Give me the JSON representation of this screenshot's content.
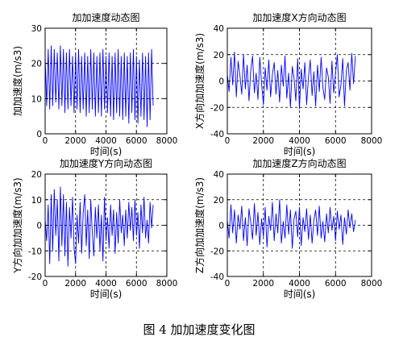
{
  "chart_data": [
    {
      "type": "line",
      "title": "加加速度动态图",
      "xlabel": "时间(s)",
      "ylabel": "加加速度(m/s3)",
      "xlim": [
        0,
        8000
      ],
      "ylim": [
        0,
        30
      ],
      "xticks": [
        0,
        2000,
        4000,
        6000,
        8000
      ],
      "yticks": [
        0,
        10,
        20,
        30
      ],
      "grid": true,
      "series": [
        {
          "x": [
            0,
            100,
            200,
            300,
            400,
            500,
            600,
            700,
            800,
            900,
            1000,
            1100,
            1200,
            1300,
            1400,
            1500,
            1600,
            1700,
            1800,
            1900,
            2000,
            2100,
            2200,
            2300,
            2400,
            2500,
            2600,
            2700,
            2800,
            2900,
            3000,
            3100,
            3200,
            3300,
            3400,
            3500,
            3600,
            3700,
            3800,
            3900,
            4000,
            4100,
            4200,
            4300,
            4400,
            4500,
            4600,
            4700,
            4800,
            4900,
            5000,
            5100,
            5200,
            5300,
            5400,
            5500,
            5600,
            5700,
            5800,
            5900,
            6000,
            6100,
            6200,
            6300,
            6400,
            6500,
            6600,
            6700,
            6800,
            6900,
            7000,
            7100
          ],
          "values": [
            22,
            8,
            24,
            7,
            25,
            8,
            24,
            9,
            23,
            7,
            25,
            8,
            24,
            6,
            23,
            7,
            24,
            8,
            22,
            6,
            23,
            7,
            24,
            6,
            22,
            7,
            23,
            5,
            22,
            6,
            24,
            7,
            23,
            5,
            22,
            6,
            23,
            5,
            24,
            7,
            22,
            6,
            23,
            5,
            22,
            4,
            23,
            6,
            24,
            5,
            22,
            4,
            23,
            5,
            22,
            3,
            23,
            6,
            24,
            4,
            22,
            3,
            21,
            5,
            23,
            4,
            22,
            2,
            23,
            4,
            24,
            8
          ],
          "color": "#0000ff"
        }
      ]
    },
    {
      "type": "line",
      "title": "加加速度X方向动态图",
      "xlabel": "时间(s)",
      "ylabel": "X方向加加速度(m/s3)",
      "xlim": [
        0,
        8000
      ],
      "ylim": [
        -40,
        40
      ],
      "xticks": [
        0,
        2000,
        4000,
        6000,
        8000
      ],
      "yticks": [
        -40,
        -20,
        0,
        20,
        40
      ],
      "grid": true,
      "series": [
        {
          "x": [
            0,
            100,
            200,
            300,
            400,
            500,
            600,
            700,
            800,
            900,
            1000,
            1100,
            1200,
            1300,
            1400,
            1500,
            1600,
            1700,
            1800,
            1900,
            2000,
            2100,
            2200,
            2300,
            2400,
            2500,
            2600,
            2700,
            2800,
            2900,
            3000,
            3100,
            3200,
            3300,
            3400,
            3500,
            3600,
            3700,
            3800,
            3900,
            4000,
            4100,
            4200,
            4300,
            4400,
            4500,
            4600,
            4700,
            4800,
            4900,
            5000,
            5100,
            5200,
            5300,
            5400,
            5500,
            5600,
            5700,
            5800,
            5900,
            6000,
            6100,
            6200,
            6300,
            6400,
            6500,
            6600,
            6700,
            6800,
            6900,
            7000,
            7100
          ],
          "values": [
            5,
            -8,
            18,
            -3,
            22,
            -12,
            15,
            4,
            -10,
            20,
            -6,
            12,
            -15,
            8,
            19,
            -9,
            6,
            -14,
            18,
            -2,
            -18,
            10,
            -7,
            16,
            -12,
            5,
            14,
            -10,
            8,
            -16,
            12,
            -4,
            19,
            -13,
            6,
            -20,
            11,
            2,
            -15,
            17,
            -21,
            9,
            -6,
            14,
            -18,
            3,
            16,
            -11,
            7,
            -19,
            12,
            -8,
            18,
            -5,
            -14,
            10,
            3,
            -17,
            15,
            -9,
            6,
            20,
            -12,
            -3,
            17,
            -19,
            8,
            14,
            -7,
            21,
            -2,
            19
          ],
          "color": "#0000ff"
        }
      ]
    },
    {
      "type": "line",
      "title": "加加速度Y方向动态图",
      "xlabel": "时间(s)",
      "ylabel": "Y方向加加速度(m/s3)",
      "xlim": [
        0,
        8000
      ],
      "ylim": [
        -20,
        20
      ],
      "xticks": [
        0,
        2000,
        4000,
        6000,
        8000
      ],
      "yticks": [
        -20,
        -10,
        0,
        10,
        20
      ],
      "grid": true,
      "series": [
        {
          "x": [
            0,
            100,
            200,
            300,
            400,
            500,
            600,
            700,
            800,
            900,
            1000,
            1100,
            1200,
            1300,
            1400,
            1500,
            1600,
            1700,
            1800,
            1900,
            2000,
            2100,
            2200,
            2300,
            2400,
            2500,
            2600,
            2700,
            2800,
            2900,
            3000,
            3100,
            3200,
            3300,
            3400,
            3500,
            3600,
            3700,
            3800,
            3900,
            4000,
            4100,
            4200,
            4300,
            4400,
            4500,
            4600,
            4700,
            4800,
            4900,
            5000,
            5100,
            5200,
            5300,
            5400,
            5500,
            5600,
            5700,
            5800,
            5900,
            6000,
            6100,
            6200,
            6300,
            6400,
            6500,
            6600,
            6700,
            6800,
            6900,
            7000,
            7100
          ],
          "values": [
            2,
            -6,
            8,
            -15,
            12,
            -10,
            14,
            -4,
            10,
            -14,
            15,
            -8,
            12,
            -12,
            9,
            -16,
            7,
            -5,
            11,
            -9,
            -15,
            4,
            -7,
            9,
            -11,
            5,
            12,
            -8,
            6,
            -13,
            10,
            -3,
            -12,
            7,
            -5,
            8,
            -10,
            4,
            -14,
            11,
            -6,
            3,
            -9,
            8,
            -4,
            6,
            -11,
            5,
            -7,
            10,
            -3,
            4,
            -8,
            6,
            -5,
            9,
            -2,
            7,
            -6,
            10,
            -4,
            5,
            -9,
            8,
            -3,
            11,
            -5,
            2,
            -7,
            9,
            -1,
            8
          ],
          "color": "#0000ff"
        }
      ]
    },
    {
      "type": "line",
      "title": "加加速度Z方向动态图",
      "xlabel": "时间(s)",
      "ylabel": "Z方向加加速度(m/s3)",
      "xlim": [
        0,
        8000
      ],
      "ylim": [
        -40,
        40
      ],
      "xticks": [
        0,
        2000,
        4000,
        6000,
        8000
      ],
      "yticks": [
        -40,
        -20,
        0,
        20,
        40
      ],
      "grid": true,
      "series": [
        {
          "x": [
            0,
            100,
            200,
            300,
            400,
            500,
            600,
            700,
            800,
            900,
            1000,
            1100,
            1200,
            1300,
            1400,
            1500,
            1600,
            1700,
            1800,
            1900,
            2000,
            2100,
            2200,
            2300,
            2400,
            2500,
            2600,
            2700,
            2800,
            2900,
            3000,
            3100,
            3200,
            3300,
            3400,
            3500,
            3600,
            3700,
            3800,
            3900,
            4000,
            4100,
            4200,
            4300,
            4400,
            4500,
            4600,
            4700,
            4800,
            4900,
            5000,
            5100,
            5200,
            5300,
            5400,
            5500,
            5600,
            5700,
            5800,
            5900,
            6000,
            6100,
            6200,
            6300,
            6400,
            6500,
            6600,
            6700,
            6800,
            6900,
            7000,
            7100
          ],
          "values": [
            4,
            -10,
            16,
            -6,
            12,
            -14,
            8,
            -3,
            15,
            -12,
            6,
            -16,
            13,
            2,
            -11,
            17,
            -8,
            10,
            -15,
            5,
            -9,
            14,
            -17,
            7,
            -4,
            18,
            -12,
            9,
            -6,
            20,
            -14,
            3,
            -10,
            16,
            -7,
            12,
            -18,
            5,
            11,
            -9,
            14,
            -16,
            6,
            -5,
            13,
            -11,
            8,
            -14,
            4,
            12,
            -8,
            15,
            -10,
            3,
            -13,
            9,
            -6,
            14,
            -4,
            7,
            -12,
            11,
            -3,
            8,
            -15,
            6,
            -7,
            12,
            -2,
            9,
            -5,
            4
          ],
          "color": "#0000ff"
        }
      ]
    }
  ],
  "caption": "图 4  加加速度变化图"
}
